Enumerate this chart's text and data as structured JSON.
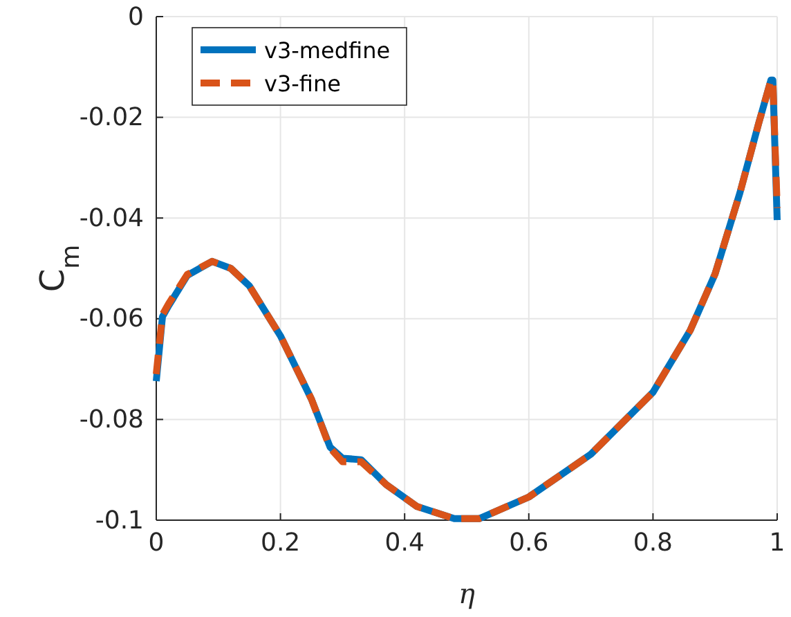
{
  "chart_data": {
    "type": "line",
    "xlabel": "η",
    "ylabel": "C$_{m}$",
    "xlim": [
      0,
      1
    ],
    "xticks": [
      0,
      0.2,
      0.4,
      0.6,
      0.8,
      1
    ],
    "ylim": [
      -0.1,
      0
    ],
    "yticks": [
      -0.1,
      -0.08,
      -0.06,
      -0.04,
      -0.02,
      0
    ],
    "grid": true,
    "legend": "top left",
    "series": [
      {
        "name": "v3-medfine",
        "color": "#0072bd",
        "line_style": "solid",
        "x": [
          0,
          0.005,
          0.01,
          0.02,
          0.05,
          0.09,
          0.12,
          0.15,
          0.2,
          0.25,
          0.28,
          0.3,
          0.33,
          0.37,
          0.42,
          0.48,
          0.52,
          0.6,
          0.7,
          0.8,
          0.86,
          0.9,
          0.94,
          0.97,
          0.99,
          0.993,
          1
        ],
        "values": [
          -0.0724,
          -0.066,
          -0.0596,
          -0.0574,
          -0.0514,
          -0.0486,
          -0.05,
          -0.0535,
          -0.0634,
          -0.076,
          -0.0855,
          -0.0877,
          -0.088,
          -0.0929,
          -0.0973,
          -0.0997,
          -0.0997,
          -0.0954,
          -0.0869,
          -0.0746,
          -0.0623,
          -0.0511,
          -0.035,
          -0.0213,
          -0.0126,
          -0.0126,
          -0.0404
        ]
      },
      {
        "name": "v3-fine",
        "color": "#d95319",
        "line_style": "dashed",
        "x": [
          0,
          0.005,
          0.01,
          0.02,
          0.05,
          0.09,
          0.12,
          0.15,
          0.2,
          0.25,
          0.28,
          0.3,
          0.33,
          0.37,
          0.42,
          0.48,
          0.52,
          0.6,
          0.7,
          0.8,
          0.86,
          0.9,
          0.94,
          0.97,
          0.99,
          0.993,
          1
        ],
        "values": [
          -0.071,
          -0.065,
          -0.0592,
          -0.057,
          -0.0512,
          -0.0486,
          -0.05,
          -0.0535,
          -0.0634,
          -0.076,
          -0.0857,
          -0.0884,
          -0.0884,
          -0.0929,
          -0.0973,
          -0.0997,
          -0.0997,
          -0.0954,
          -0.0869,
          -0.0746,
          -0.0623,
          -0.0511,
          -0.035,
          -0.0213,
          -0.0126,
          -0.0126,
          -0.038
        ]
      }
    ]
  }
}
